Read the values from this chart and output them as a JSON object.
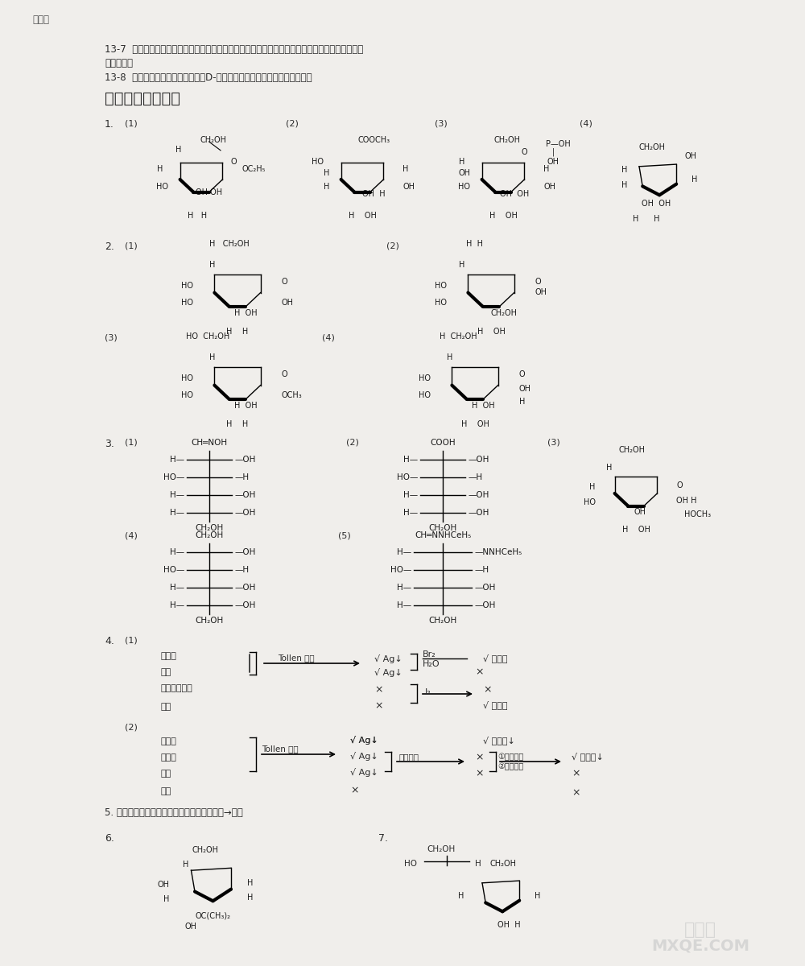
{
  "bg_color": "#f0eeeb",
  "text_color": "#2a2a2a",
  "page_top_text": "续页：",
  "line_137": "13-7  淠粉整个分子的末端仍保留有醉基（或半缩醐羟基），但在整个分子中所占比例极小，所以不",
  "line_137b": "显还原性。",
  "line_138": "13-8  将淠粉和纤维素彻底水解，以D-葡萄糖为标样，用色谱法鉴定水解液。",
  "title": "习题十三参考答案",
  "watermark1": "答案圈",
  "watermark2": "MXQE.COM"
}
